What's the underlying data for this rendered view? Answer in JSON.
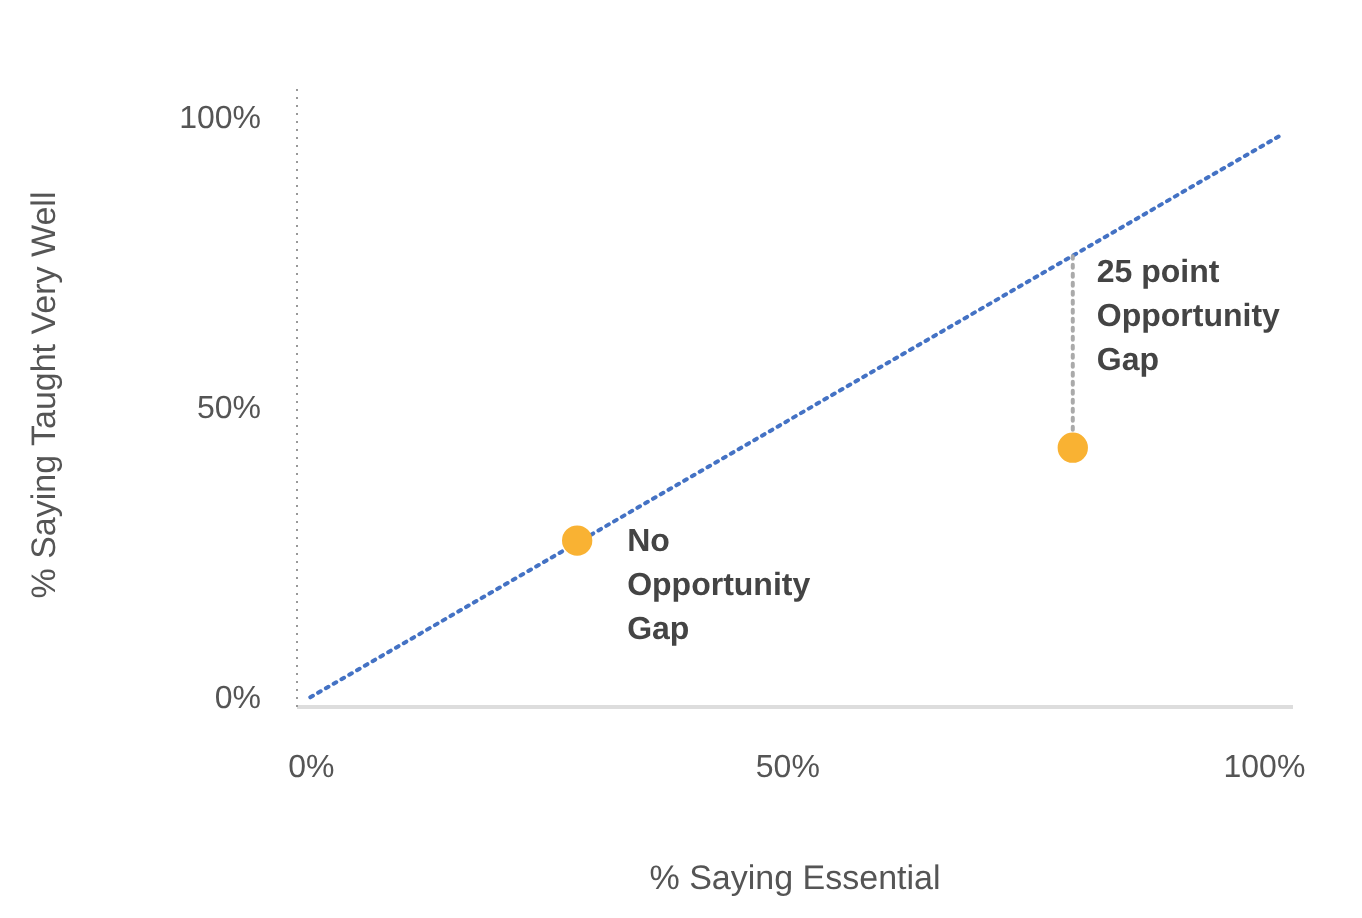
{
  "chart_data": {
    "type": "scatter",
    "xlabel": "% Saying Essential",
    "ylabel": "% Saying Taught Very Well",
    "series": [
      {
        "type": "line",
        "x": [
          0,
          102
        ],
        "values": [
          0,
          97
        ],
        "color": "#4472c4",
        "line_style": "dotted"
      },
      {
        "type": "line",
        "x": [
          80,
          80
        ],
        "values": [
          43,
          76
        ],
        "color": "#aaaaaa",
        "line_style": "dotted"
      },
      {
        "x": [
          28,
          80
        ],
        "values": [
          27,
          43
        ],
        "color": "#f9b233",
        "marker": "circle"
      }
    ],
    "xlim": [
      -1.5,
      103
    ],
    "ylim": [
      -1.5,
      106
    ],
    "xticks": [
      {
        "value": 0,
        "label": "0%"
      },
      {
        "value": 50,
        "label": "50%"
      },
      {
        "value": 100,
        "label": "100%"
      }
    ],
    "yticks": [
      {
        "value": 0,
        "label": "0%"
      },
      {
        "value": 50,
        "label": "50%"
      },
      {
        "value": 100,
        "label": "100%"
      }
    ],
    "annotations": [
      {
        "text": "No Opportunity Gap",
        "x": 28,
        "y": 27
      },
      {
        "text": "25 point Opportunity Gap",
        "x": 80,
        "y": 76
      }
    ]
  }
}
